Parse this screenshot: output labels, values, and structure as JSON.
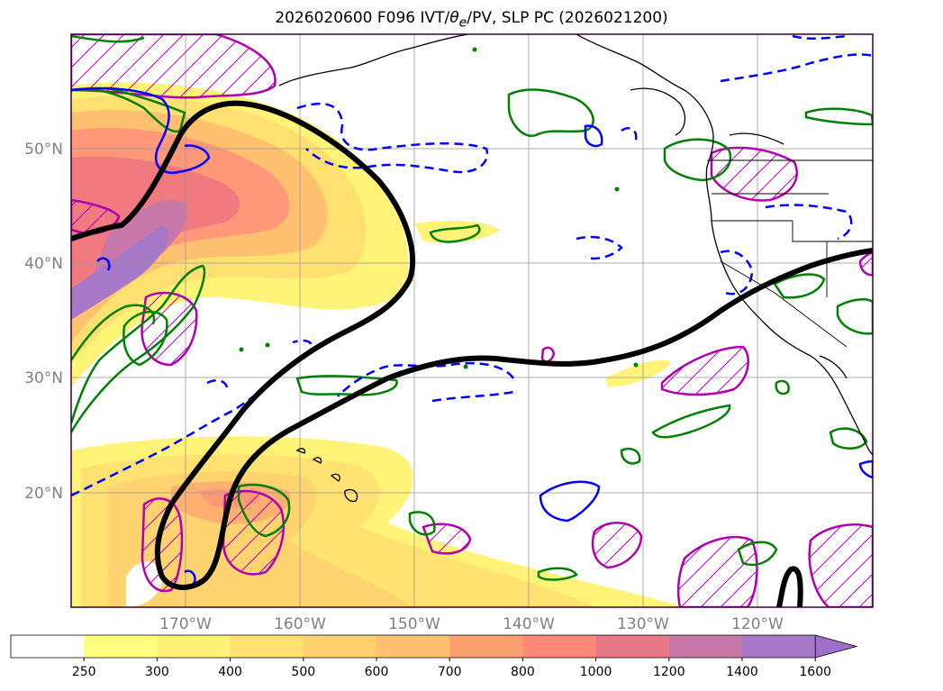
{
  "title": {
    "prefix": "2026020600 F096 IVT/",
    "theta": "θ",
    "theta_sub": "e",
    "suffix": "/PV, SLP PC (2026021200)"
  },
  "map": {
    "lon_range": [
      -180,
      -110
    ],
    "lat_range": [
      10,
      60
    ],
    "lat_labels": [
      {
        "lat": 50,
        "label": "50°N"
      },
      {
        "lat": 40,
        "label": "40°N"
      },
      {
        "lat": 30,
        "label": "30°N"
      },
      {
        "lat": 20,
        "label": "20°N"
      }
    ],
    "lon_labels": [
      {
        "lon": -170,
        "label": "170°W"
      },
      {
        "lon": -160,
        "label": "160°W"
      },
      {
        "lon": -150,
        "label": "150°W"
      },
      {
        "lon": -140,
        "label": "140°W"
      },
      {
        "lon": -130,
        "label": "130°W"
      },
      {
        "lon": -120,
        "label": "120°W"
      }
    ],
    "grid": true,
    "colors": {
      "slp_pc": "#000000",
      "pv_solid": "#0000ff",
      "pv_dashed": "#0000ff",
      "theta_e": "#008000",
      "hatch": "#b000b0",
      "frame": "#330033"
    }
  },
  "colorbar": {
    "levels": [
      "250",
      "300",
      "400",
      "500",
      "600",
      "700",
      "800",
      "1000",
      "1200",
      "1400",
      "1600"
    ],
    "colors": [
      "#ffffff",
      "#ffff80",
      "#fff078",
      "#ffe070",
      "#ffd070",
      "#ffc070",
      "#ffa070",
      "#ff8878",
      "#e87888",
      "#c878a8",
      "#a878c8"
    ],
    "extend": "max",
    "extend_color": "#a070c8"
  }
}
